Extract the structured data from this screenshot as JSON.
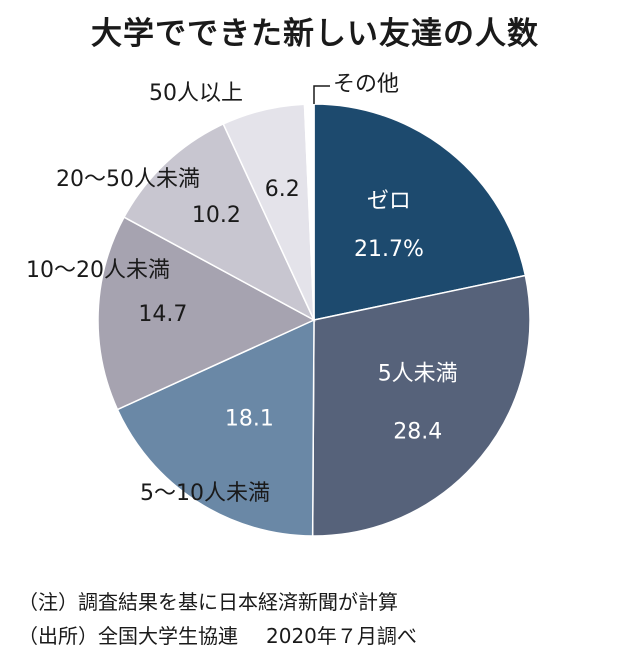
{
  "chart_data": {
    "type": "pie",
    "title": "大学でできた新しい友達の人数",
    "slices": [
      {
        "label": "ゼロ",
        "value": 21.7,
        "value_text": "21.7%",
        "color": "#1d4a6e"
      },
      {
        "label": "5人未満",
        "value": 28.4,
        "value_text": "28.4",
        "color": "#56627a"
      },
      {
        "label": "5〜10人未満",
        "value": 18.1,
        "value_text": "18.1",
        "color": "#6a88a6"
      },
      {
        "label": "10〜20人未満",
        "value": 14.7,
        "value_text": "14.7",
        "color": "#a6a3b0"
      },
      {
        "label": "20〜50人未満",
        "value": 10.2,
        "value_text": "10.2",
        "color": "#c8c6d0"
      },
      {
        "label": "50人以上",
        "value": 6.2,
        "value_text": "6.2",
        "color": "#e4e3ea"
      },
      {
        "label": "その他",
        "value": 0.7,
        "value_text": "",
        "color": "#ffffff"
      }
    ]
  },
  "notes": {
    "note": "（注）調査結果を基に日本経済新聞が計算",
    "source": "（出所）全国大学生協連",
    "date": "2020年７月調べ"
  }
}
